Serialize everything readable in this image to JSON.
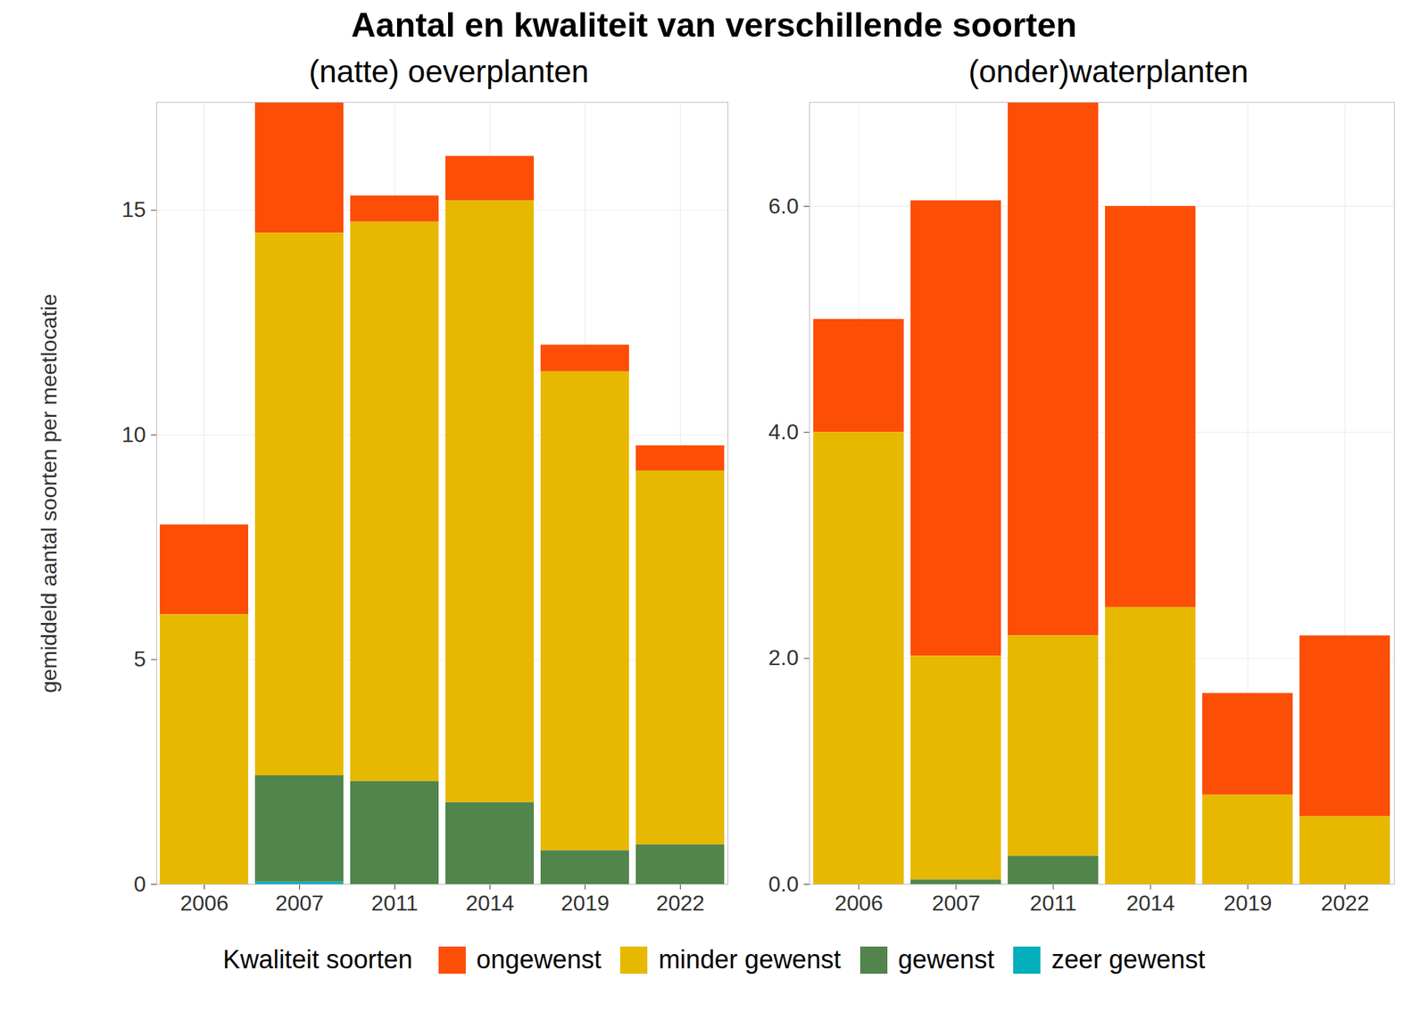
{
  "title": "Aantal en kwaliteit van verschillende soorten",
  "legend_title": "Kwaliteit soorten",
  "chart_data": [
    {
      "type": "bar",
      "stacked": true,
      "grid": true,
      "legend": "bottom",
      "title": "(natte) oeverplanten",
      "ylabel": "gemiddeld aantal soorten per meetlocatie",
      "categories": [
        "2006",
        "2007",
        "2011",
        "2014",
        "2019",
        "2022"
      ],
      "ylim": [
        0,
        17.4
      ],
      "yticks": [
        0,
        5,
        10,
        15
      ],
      "series": [
        {
          "name": "ongewenst",
          "color": "#FC4E07",
          "values": [
            2,
            2.91,
            0.58,
            0.99,
            0.59,
            0.56
          ]
        },
        {
          "name": "minder gewenst",
          "color": "#E7B800",
          "values": [
            6,
            12.07,
            12.45,
            13.39,
            10.66,
            8.32
          ]
        },
        {
          "name": "gewenst",
          "color": "#52854C",
          "values": [
            0,
            2.37,
            2.29,
            1.82,
            0.75,
            0.88
          ]
        },
        {
          "name": "zeer gewenst",
          "color": "#00AFBB",
          "values": [
            0,
            0.05,
            0,
            0,
            0,
            0
          ]
        }
      ]
    },
    {
      "type": "bar",
      "stacked": true,
      "grid": true,
      "legend": "bottom",
      "title": "(onder)waterplanten",
      "categories": [
        "2006",
        "2007",
        "2011",
        "2014",
        "2019",
        "2022"
      ],
      "ylim": [
        0,
        6.92
      ],
      "yticks": [
        0,
        2,
        4,
        6
      ],
      "series": [
        {
          "name": "ongewenst",
          "color": "#FC4E07",
          "values": [
            1,
            4.03,
            4.72,
            3.55,
            0.9,
            1.6
          ]
        },
        {
          "name": "minder gewenst",
          "color": "#E7B800",
          "values": [
            4,
            1.98,
            1.95,
            2.45,
            0.79,
            0.6
          ]
        },
        {
          "name": "gewenst",
          "color": "#52854C",
          "values": [
            0,
            0.04,
            0.25,
            0,
            0,
            0
          ]
        },
        {
          "name": "zeer gewenst",
          "color": "#00AFBB",
          "values": [
            0,
            0,
            0,
            0,
            0,
            0
          ]
        }
      ]
    }
  ]
}
